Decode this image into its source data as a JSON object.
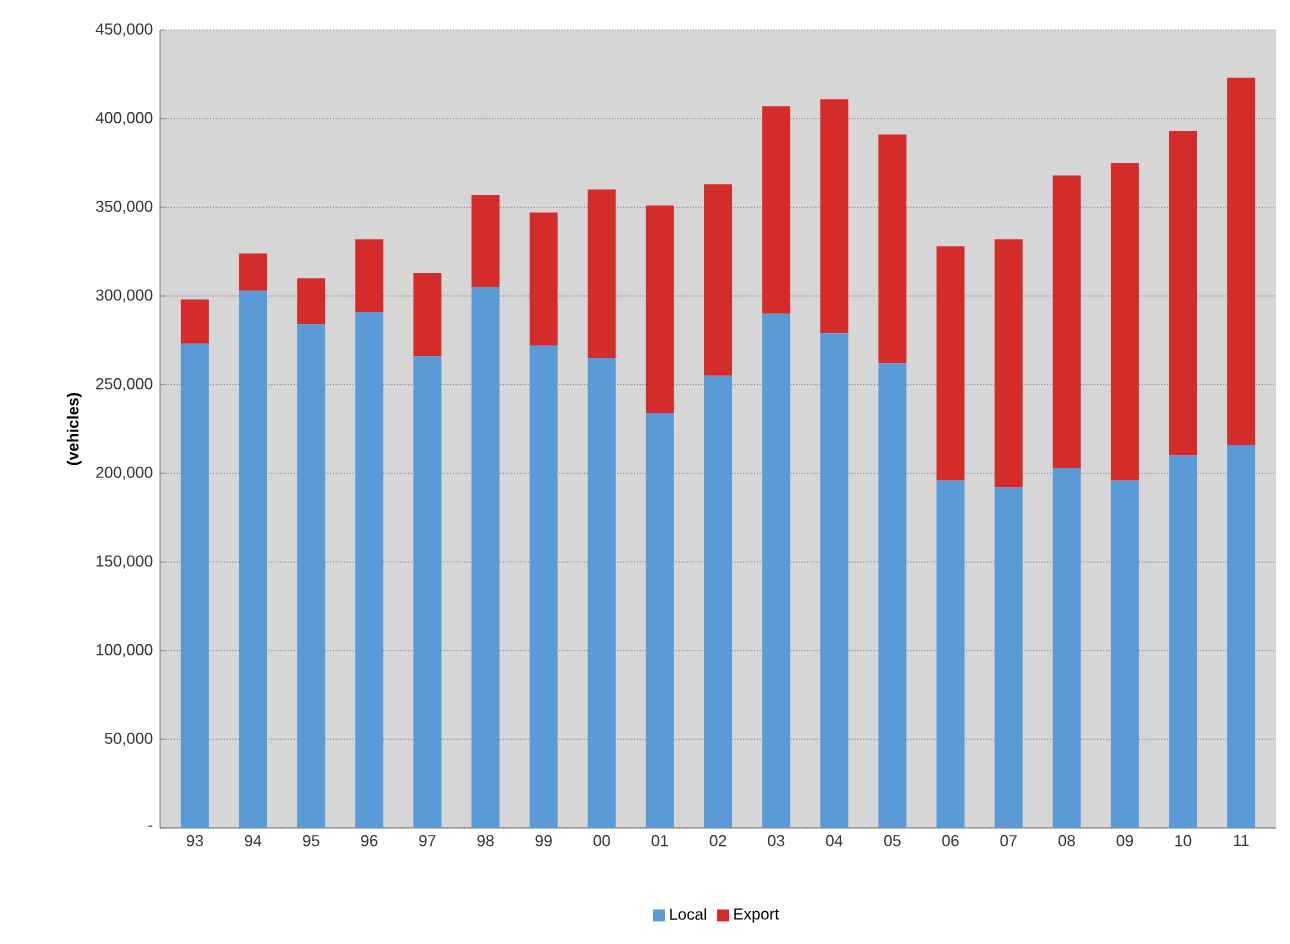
{
  "chart_data": {
    "type": "bar",
    "stacked": true,
    "ylabel": "(vehicles)",
    "categories": [
      "93",
      "94",
      "95",
      "96",
      "97",
      "98",
      "99",
      "00",
      "01",
      "02",
      "03",
      "04",
      "05",
      "06",
      "07",
      "08",
      "09",
      "10",
      "11"
    ],
    "series": [
      {
        "name": "Local",
        "color": "#5a9ad6",
        "values": [
          273000,
          303000,
          284000,
          291000,
          266000,
          305000,
          272000,
          265000,
          234000,
          255000,
          290000,
          279000,
          262000,
          196000,
          192000,
          203000,
          196000,
          210000,
          216000
        ]
      },
      {
        "name": "Export",
        "color": "#d42b2b",
        "values": [
          25000,
          21000,
          26000,
          41000,
          47000,
          52000,
          75000,
          95000,
          117000,
          108000,
          117000,
          132000,
          129000,
          132000,
          140000,
          165000,
          179000,
          183000,
          207000
        ]
      }
    ],
    "ylim": [
      0,
      450000
    ],
    "yticks": [
      {
        "value": 0,
        "label": "-"
      },
      {
        "value": 50000,
        "label": "50,000"
      },
      {
        "value": 100000,
        "label": "100,000"
      },
      {
        "value": 150000,
        "label": "150,000"
      },
      {
        "value": 200000,
        "label": "200,000"
      },
      {
        "value": 250000,
        "label": "250,000"
      },
      {
        "value": 300000,
        "label": "300,000"
      },
      {
        "value": 350000,
        "label": "350,000"
      },
      {
        "value": 400000,
        "label": "400,000"
      },
      {
        "value": 450000,
        "label": "450,000"
      }
    ],
    "grid": "y",
    "legend": "bottom"
  }
}
